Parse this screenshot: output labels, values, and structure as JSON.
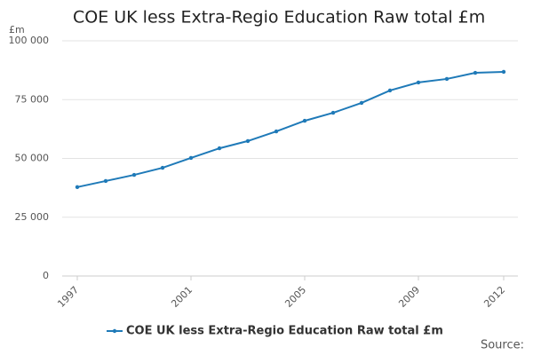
{
  "chart_data": {
    "type": "line",
    "title": "COE UK less Extra-Regio Education Raw total £m",
    "y_label": "£m",
    "source": "Source:",
    "x": [
      1997,
      1998,
      1999,
      2000,
      2001,
      2002,
      2003,
      2004,
      2005,
      2006,
      2007,
      2008,
      2009,
      2010,
      2011,
      2012
    ],
    "series": [
      {
        "name": "COE UK less Extra-Regio Education Raw total £m",
        "color": "#1f7ab8",
        "values": [
          37800,
          40400,
          43000,
          46000,
          50200,
          54300,
          57400,
          61500,
          66000,
          69400,
          73600,
          78900,
          82300,
          83800,
          86400,
          86800
        ]
      }
    ],
    "xlim": [
      1997,
      2012
    ],
    "xticks": [
      1997,
      2001,
      2005,
      2009,
      2012
    ],
    "ylim": [
      0,
      100000
    ],
    "yticks": [
      0,
      {
        "value": 25000,
        "label": "25 000"
      },
      {
        "value": 50000,
        "label": "50 000"
      },
      {
        "value": 75000,
        "label": "75 000"
      },
      {
        "value": 100000,
        "label": "100 000"
      }
    ],
    "grid": true,
    "legend": "bottom"
  }
}
